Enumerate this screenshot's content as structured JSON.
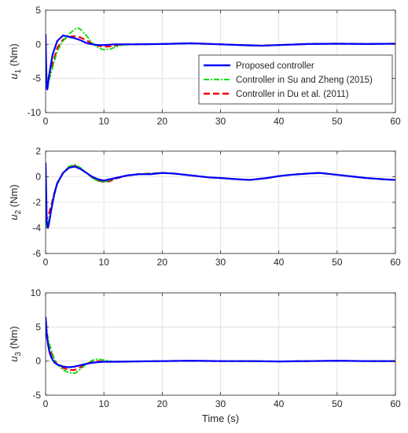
{
  "colors": {
    "proposed": "#0000ff",
    "su_zheng": "#00dd00",
    "du": "#ee0000",
    "grid": "#dcdcdc",
    "axis": "#262626"
  },
  "legend_entries": [
    "Proposed controller",
    "Controller in Su and Zheng (2015)",
    "Controller in Du et al. (2011)"
  ],
  "chart_data": [
    {
      "type": "line",
      "id": "u1",
      "ylabel_main": "u",
      "ylabel_sub": "1",
      "ylabel_unit": " (Nm)",
      "xlabel": "",
      "xlim": [
        0,
        60
      ],
      "ylim": [
        -10,
        5
      ],
      "xticks": [
        0,
        10,
        20,
        30,
        40,
        50,
        60
      ],
      "yticks": [
        -10,
        -5,
        0,
        5
      ],
      "grid": true,
      "legend": "center-right",
      "series": [
        {
          "name": "Proposed controller",
          "x": [
            0,
            0.1,
            0.2,
            0.3,
            0.4,
            0.5,
            0.8,
            1.2,
            2,
            3,
            4,
            5,
            6,
            7,
            8,
            9,
            10,
            12,
            15,
            20,
            25,
            30,
            35,
            37,
            40,
            45,
            50,
            55,
            60
          ],
          "y": [
            1.5,
            -3,
            -6.5,
            -6.6,
            -6,
            -5.2,
            -3.5,
            -1.5,
            0.5,
            1.3,
            1.1,
            0.9,
            0.6,
            0.2,
            0,
            -0.1,
            -0.1,
            0,
            0,
            0.05,
            0.15,
            0,
            -0.15,
            -0.2,
            -0.1,
            0.05,
            0.1,
            0.05,
            0.1
          ]
        },
        {
          "name": "Controller in Su and Zheng (2015)",
          "x": [
            0,
            0.2,
            0.5,
            1,
            1.5,
            2,
            3,
            4,
            5,
            5.5,
            6,
            7,
            8,
            9,
            10,
            11,
            12,
            13,
            15,
            20,
            25,
            30,
            35,
            37,
            40,
            45,
            50,
            55,
            60
          ],
          "y": [
            -5,
            -5.8,
            -5.5,
            -4,
            -2.5,
            -1,
            0.5,
            1.5,
            2.2,
            2.4,
            2.2,
            1.3,
            0.2,
            -0.5,
            -0.8,
            -0.7,
            -0.4,
            -0.1,
            0,
            0.05,
            0.15,
            0,
            -0.15,
            -0.2,
            -0.1,
            0.05,
            0.1,
            0.05,
            0.1
          ]
        },
        {
          "name": "Controller in Du et al. (2011)",
          "x": [
            0,
            0.2,
            0.5,
            1,
            1.5,
            2,
            3,
            4,
            5,
            6,
            7,
            8,
            9,
            10,
            11,
            12,
            13,
            15,
            20,
            25,
            30,
            35,
            37,
            40,
            45,
            50,
            55,
            60
          ],
          "y": [
            -4,
            -5,
            -4.8,
            -3.5,
            -2,
            -0.5,
            0.7,
            1.1,
            1.2,
            1,
            0.6,
            0.1,
            -0.2,
            -0.35,
            -0.3,
            -0.15,
            0,
            0,
            0.05,
            0.15,
            0,
            -0.15,
            -0.2,
            -0.1,
            0.05,
            0.1,
            0.05,
            0.1
          ]
        }
      ]
    },
    {
      "type": "line",
      "id": "u2",
      "ylabel_main": "u",
      "ylabel_sub": "2",
      "ylabel_unit": " (Nm)",
      "xlabel": "",
      "xlim": [
        0,
        60
      ],
      "ylim": [
        -6,
        2
      ],
      "xticks": [
        0,
        10,
        20,
        30,
        40,
        50,
        60
      ],
      "yticks": [
        -6,
        -4,
        -2,
        0,
        2
      ],
      "grid": true,
      "series": [
        {
          "name": "Proposed controller",
          "x": [
            0,
            0.1,
            0.2,
            0.4,
            0.6,
            1,
            1.5,
            2,
            3,
            4,
            5,
            6,
            7,
            8,
            9,
            10,
            11,
            12,
            14,
            16,
            18,
            20,
            22,
            25,
            28,
            30,
            33,
            35,
            38,
            40,
            42,
            45,
            47,
            50,
            53,
            55,
            58,
            60
          ],
          "y": [
            1.1,
            -1,
            -3.5,
            -4,
            -3.6,
            -2.5,
            -1.3,
            -0.5,
            0.3,
            0.7,
            0.8,
            0.6,
            0.3,
            0,
            -0.2,
            -0.3,
            -0.2,
            -0.1,
            0.1,
            0.2,
            0.2,
            0.3,
            0.25,
            0.1,
            -0.05,
            -0.1,
            -0.2,
            -0.25,
            -0.1,
            0.05,
            0.15,
            0.25,
            0.3,
            0.15,
            0,
            -0.1,
            -0.2,
            -0.25
          ]
        },
        {
          "name": "Controller in Su and Zheng (2015)",
          "x": [
            0,
            0.2,
            0.5,
            1,
            1.5,
            2,
            3,
            4,
            5,
            6,
            7,
            8,
            9,
            10,
            11,
            12,
            14,
            16,
            18,
            20,
            22,
            25,
            28,
            30,
            33,
            35,
            38,
            40,
            42,
            45,
            47,
            50,
            53,
            55,
            58,
            60
          ],
          "y": [
            -3.5,
            -4,
            -3.5,
            -2.5,
            -1.5,
            -0.6,
            0.3,
            0.8,
            0.95,
            0.7,
            0.3,
            -0.1,
            -0.35,
            -0.4,
            -0.3,
            -0.1,
            0.1,
            0.2,
            0.25,
            0.3,
            0.25,
            0.1,
            -0.05,
            -0.1,
            -0.2,
            -0.25,
            -0.1,
            0.05,
            0.15,
            0.25,
            0.3,
            0.15,
            0,
            -0.1,
            -0.2,
            -0.25
          ]
        },
        {
          "name": "Controller in Du et al. (2011)",
          "x": [
            0,
            0.2,
            0.5,
            1,
            1.5,
            2,
            3,
            4,
            5,
            6,
            7,
            8,
            9,
            10,
            11,
            12,
            14,
            16,
            18,
            20,
            22,
            25,
            28,
            30,
            33,
            35,
            38,
            40,
            42,
            45,
            47,
            50,
            53,
            55,
            58,
            60
          ],
          "y": [
            -3,
            -3.3,
            -3,
            -2.2,
            -1.3,
            -0.5,
            0.3,
            0.75,
            0.85,
            0.65,
            0.3,
            -0.05,
            -0.3,
            -0.4,
            -0.35,
            -0.15,
            0.1,
            0.2,
            0.25,
            0.3,
            0.25,
            0.1,
            -0.05,
            -0.1,
            -0.2,
            -0.25,
            -0.1,
            0.05,
            0.15,
            0.25,
            0.3,
            0.15,
            0,
            -0.1,
            -0.2,
            -0.25
          ]
        }
      ]
    },
    {
      "type": "line",
      "id": "u3",
      "ylabel_main": "u",
      "ylabel_sub": "3",
      "ylabel_unit": " (Nm)",
      "xlabel": "Time (s)",
      "xlim": [
        0,
        60
      ],
      "ylim": [
        -5,
        10
      ],
      "xticks": [
        0,
        10,
        20,
        30,
        40,
        50,
        60
      ],
      "yticks": [
        -5,
        0,
        5,
        10
      ],
      "grid": true,
      "series": [
        {
          "name": "Proposed controller",
          "x": [
            0,
            0.1,
            0.2,
            0.4,
            0.7,
            1,
            1.5,
            2,
            3,
            4,
            5,
            6,
            7,
            8,
            9,
            10,
            12,
            15,
            20,
            25,
            30,
            35,
            40,
            45,
            50,
            55,
            60
          ],
          "y": [
            6.5,
            5.5,
            4,
            2.5,
            1.2,
            0.5,
            -0.2,
            -0.5,
            -0.8,
            -0.9,
            -0.8,
            -0.6,
            -0.4,
            -0.25,
            -0.15,
            -0.1,
            -0.1,
            -0.05,
            0,
            0.05,
            0,
            0,
            -0.05,
            0,
            0.05,
            0,
            0
          ]
        },
        {
          "name": "Controller in Su and Zheng (2015)",
          "x": [
            0,
            0.2,
            0.5,
            1,
            1.5,
            2,
            3,
            4,
            5,
            6,
            7,
            8,
            9,
            10,
            11,
            12,
            15,
            20,
            25,
            30,
            35,
            40,
            45,
            50,
            55,
            60
          ],
          "y": [
            5.5,
            4.5,
            3,
            1.5,
            0.3,
            -0.5,
            -1.3,
            -1.7,
            -1.8,
            -1.2,
            -0.4,
            0.1,
            0.3,
            0.15,
            0,
            -0.1,
            -0.05,
            0,
            0.05,
            0,
            0,
            -0.05,
            0,
            0.05,
            0,
            0
          ]
        },
        {
          "name": "Controller in Du et al. (2011)",
          "x": [
            0,
            0.2,
            0.5,
            1,
            1.5,
            2,
            3,
            4,
            5,
            6,
            7,
            8,
            9,
            10,
            11,
            12,
            15,
            20,
            25,
            30,
            35,
            40,
            45,
            50,
            55,
            60
          ],
          "y": [
            4,
            3.5,
            2.5,
            1.2,
            0.2,
            -0.5,
            -1,
            -1.3,
            -1.3,
            -0.9,
            -0.4,
            -0.1,
            0,
            -0.1,
            -0.1,
            -0.1,
            -0.05,
            0,
            0.05,
            0,
            0,
            -0.05,
            0,
            0.05,
            0,
            0
          ]
        }
      ]
    }
  ]
}
